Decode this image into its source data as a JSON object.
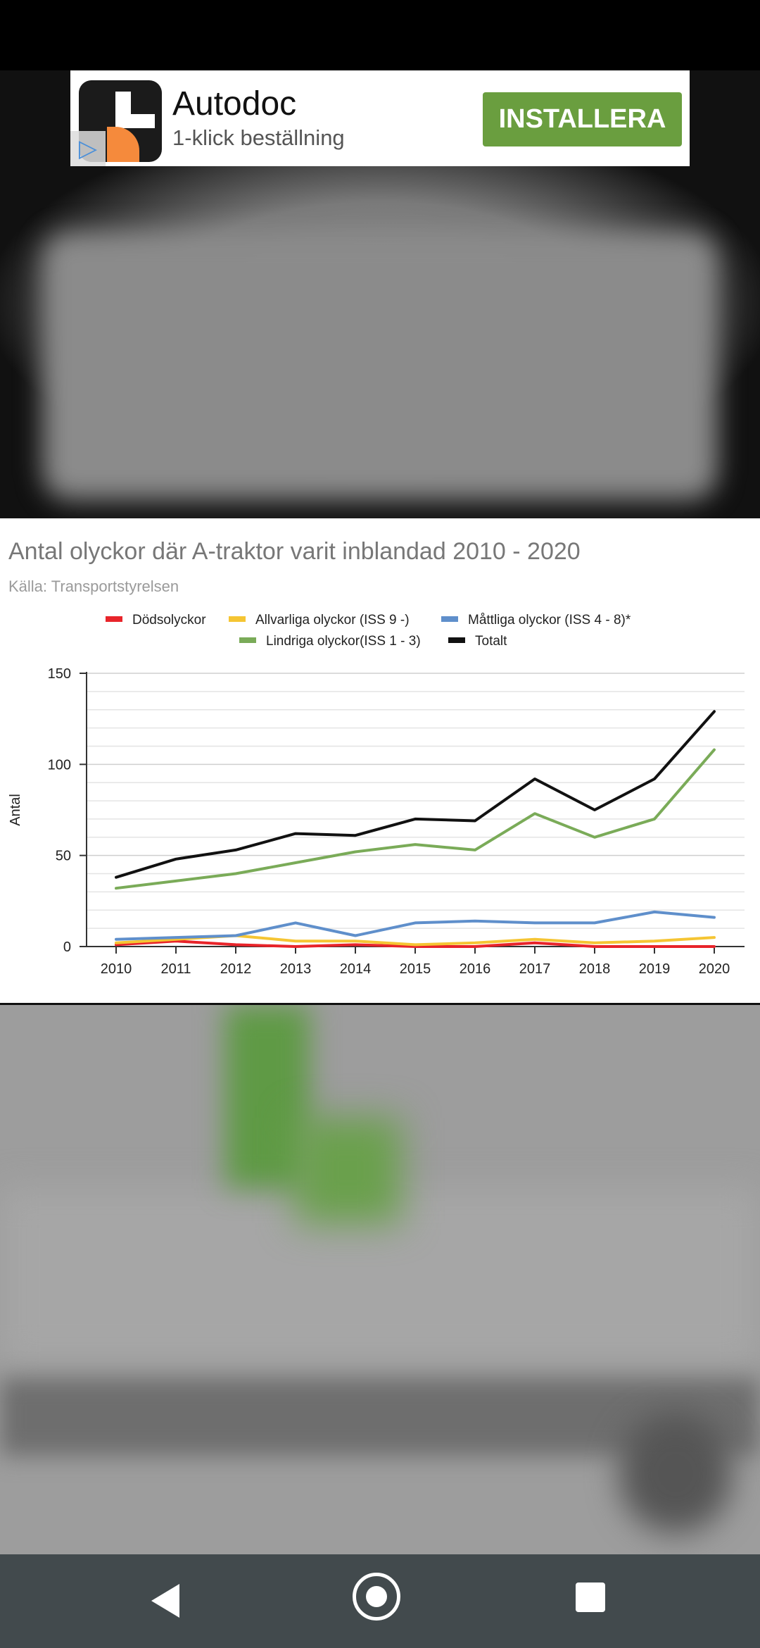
{
  "ad": {
    "app_name": "Autodoc",
    "tagline": "1-klick beställning",
    "install_label": "INSTALLERA",
    "icon": "autodoc-app-icon",
    "adchoices_icon": "adchoices-icon",
    "button_color": "#6a9e3f"
  },
  "chart_data": {
    "type": "line",
    "title": "Antal olyckor där A-traktor varit inblandad 2010 - 2020",
    "subtitle": "Källa: Transportstyrelsen",
    "xlabel": "",
    "ylabel": "Antal",
    "x": [
      "2010",
      "2011",
      "2012",
      "2013",
      "2014",
      "2015",
      "2016",
      "2017",
      "2018",
      "2019",
      "2020"
    ],
    "ylim": [
      0,
      150
    ],
    "yticks": [
      "0",
      "50",
      "100",
      "150"
    ],
    "grid": true,
    "legend_position": "top",
    "series": [
      {
        "name": "Dödsolyckor",
        "color": "#e8242a",
        "values": [
          1,
          3,
          1,
          0,
          1,
          0,
          0,
          2,
          0,
          0,
          0
        ]
      },
      {
        "name": "Allvarliga olyckor (ISS 9 -)",
        "color": "#f5c533",
        "values": [
          2,
          4,
          6,
          3,
          3,
          1,
          2,
          4,
          2,
          3,
          5
        ]
      },
      {
        "name": "Måttliga olyckor (ISS 4 - 8)*",
        "color": "#5f8fcb",
        "values": [
          4,
          5,
          6,
          13,
          6,
          13,
          14,
          13,
          13,
          19,
          16
        ]
      },
      {
        "name": "Lindriga olyckor(ISS 1 - 3)",
        "color": "#7aab58",
        "values": [
          32,
          36,
          40,
          46,
          52,
          56,
          53,
          73,
          60,
          70,
          108
        ]
      },
      {
        "name": "Totalt",
        "color": "#111111",
        "values": [
          38,
          48,
          53,
          62,
          61,
          70,
          69,
          92,
          75,
          92,
          129
        ]
      }
    ]
  },
  "nav": {
    "back_icon": "back-triangle-icon",
    "home_icon": "home-circle-icon",
    "recents_icon": "recents-square-icon"
  }
}
